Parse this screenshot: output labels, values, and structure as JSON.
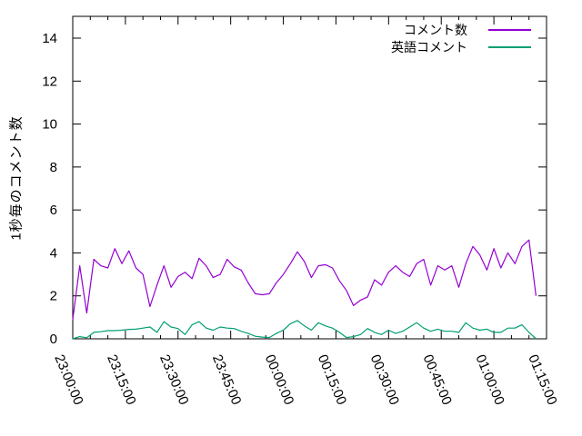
{
  "chart_data": {
    "type": "line",
    "title": "",
    "xlabel": "",
    "ylabel": "1秒毎のコメント数",
    "ylim": [
      0,
      15
    ],
    "ytick_values": [
      0,
      2,
      4,
      6,
      8,
      10,
      12,
      14
    ],
    "xtick_labels": [
      "23:00:00",
      "23:15:00",
      "23:30:00",
      "23:45:00",
      "00:00:00",
      "00:15:00",
      "00:30:00",
      "00:45:00",
      "01:00:00",
      "01:15:00"
    ],
    "xtick_interval_minutes": 15,
    "x_minor_tick_minutes": 5,
    "x_total_minutes": 135,
    "x_start": "23:00:00",
    "x_end": "01:15:00",
    "sample_interval_minutes": 2,
    "grid": false,
    "legend_position": "top-right-inside",
    "series": [
      {
        "name": "コメント数",
        "color": "#9400d3",
        "start_time": "23:00:00",
        "values": [
          0.9,
          3.4,
          1.2,
          3.7,
          3.4,
          3.3,
          4.2,
          3.5,
          4.1,
          3.3,
          3.0,
          1.5,
          2.5,
          3.4,
          2.4,
          2.9,
          3.1,
          2.8,
          3.75,
          3.4,
          2.85,
          3.0,
          3.7,
          3.35,
          3.2,
          2.6,
          2.1,
          2.05,
          2.1,
          2.6,
          3.0,
          3.5,
          4.05,
          3.6,
          2.85,
          3.4,
          3.45,
          3.3,
          2.7,
          2.25,
          1.55,
          1.8,
          1.95,
          2.75,
          2.5,
          3.1,
          3.4,
          3.1,
          2.9,
          3.5,
          3.7,
          2.5,
          3.4,
          3.2,
          3.4,
          2.4,
          3.5,
          4.3,
          3.9,
          3.2,
          4.2,
          3.3,
          4.0,
          3.5,
          4.3,
          4.6,
          2.0
        ]
      },
      {
        "name": "英語コメント",
        "color": "#009e73",
        "start_time": "23:00:00",
        "values": [
          0.0,
          0.1,
          0.05,
          0.3,
          0.33,
          0.38,
          0.38,
          0.4,
          0.44,
          0.45,
          0.5,
          0.55,
          0.3,
          0.8,
          0.55,
          0.48,
          0.2,
          0.65,
          0.8,
          0.5,
          0.4,
          0.55,
          0.5,
          0.48,
          0.35,
          0.25,
          0.12,
          0.08,
          0.06,
          0.25,
          0.4,
          0.7,
          0.85,
          0.6,
          0.4,
          0.75,
          0.6,
          0.5,
          0.3,
          0.06,
          0.1,
          0.2,
          0.48,
          0.3,
          0.2,
          0.4,
          0.25,
          0.35,
          0.55,
          0.75,
          0.5,
          0.35,
          0.45,
          0.35,
          0.35,
          0.3,
          0.75,
          0.5,
          0.4,
          0.45,
          0.3,
          0.3,
          0.5,
          0.5,
          0.65,
          0.3,
          0.0
        ]
      }
    ]
  }
}
